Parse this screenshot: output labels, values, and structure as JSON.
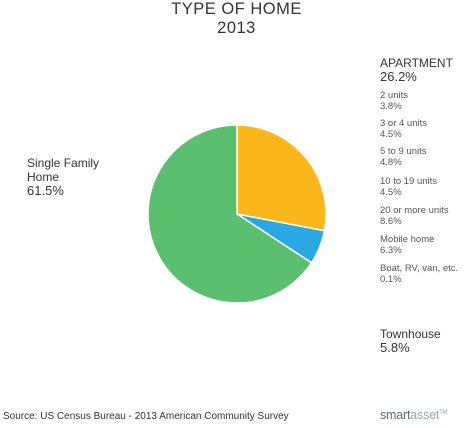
{
  "chart_data": {
    "type": "pie",
    "title": "TYPE OF HOME",
    "subtitle": "2013",
    "slices": [
      {
        "label": "APARTMENT",
        "value": 26.2,
        "value_label": "26.2%",
        "color": "#fbb71b"
      },
      {
        "label": "Townhouse",
        "value": 5.8,
        "value_label": "5.8%",
        "color": "#29a8e1"
      },
      {
        "label": "Single Family Home",
        "label_lines": [
          "Single Family",
          "Home"
        ],
        "value": 61.5,
        "value_label": "61.5%",
        "color": "#5cbf70"
      }
    ],
    "apartment_breakdown": [
      {
        "label": "2 units",
        "value": 3.8,
        "value_label": "3.8%"
      },
      {
        "label": "3 or 4 units",
        "value": 4.5,
        "value_label": "4.5%"
      },
      {
        "label": "5 to 9 units",
        "value": 4.8,
        "value_label": "4.8%"
      },
      {
        "label": "10 to 19 units",
        "value": 4.5,
        "value_label": "4.5%"
      },
      {
        "label": "20 or more units",
        "value": 8.6,
        "value_label": "8.6%"
      },
      {
        "label": "Mobile home",
        "value": 6.3,
        "value_label": "6.3%"
      },
      {
        "label": "Boat, RV, van, etc.",
        "value": 0.1,
        "value_label": "0.1%"
      }
    ]
  },
  "source": "Source: US Census Bureau - 2013 American Community Survey",
  "brand": {
    "part1": "smart",
    "part2": "asset",
    "tm": "TM",
    "color1": "#616a72",
    "color2": "#9aa7b1"
  }
}
